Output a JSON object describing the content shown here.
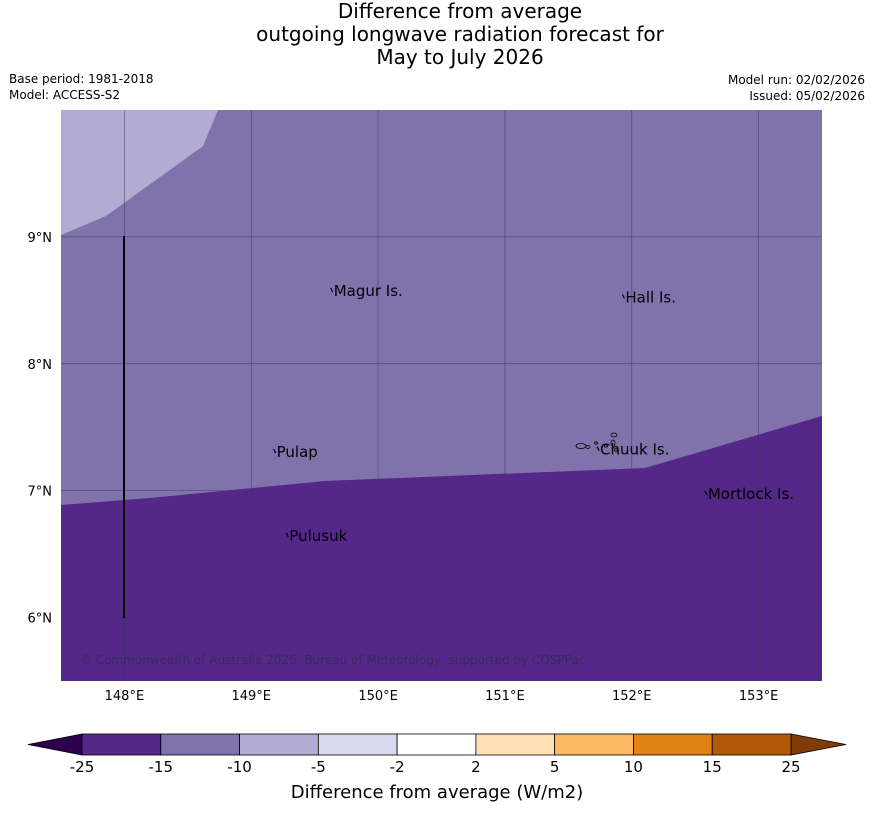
{
  "title": {
    "line1": "Difference from average",
    "line2": "outgoing longwave radiation forecast for",
    "line3": "May to July 2026"
  },
  "meta": {
    "base_period": "Base period: 1981-2018",
    "model": "Model: ACCESS-S2",
    "model_run": "Model run: 02/02/2026",
    "issued": "Issued: 05/02/2026"
  },
  "map": {
    "lon_range": [
      147.5,
      153.5
    ],
    "lat_range": [
      5.5,
      10.0
    ],
    "lon_ticks": [
      "148°E",
      "149°E",
      "150°E",
      "151°E",
      "152°E",
      "153°E"
    ],
    "lat_ticks": [
      "9°N",
      "8°N",
      "7°N",
      "6°N"
    ],
    "places": [
      {
        "name": "Magur Is.",
        "lon": 149.65,
        "lat": 8.55
      },
      {
        "name": "Hall Is.",
        "lon": 151.95,
        "lat": 8.5
      },
      {
        "name": "Pulap",
        "lon": 149.2,
        "lat": 7.28
      },
      {
        "name": "Chuuk Is.",
        "lon": 151.75,
        "lat": 7.3
      },
      {
        "name": "Mortlock Is.",
        "lon": 152.6,
        "lat": 6.95
      },
      {
        "name": "Pulusuk",
        "lon": 149.3,
        "lat": 6.62
      }
    ],
    "copyright": "© Commonwealth of Australia 2026, Bureau of Meteorology, supported by COSPPac",
    "colors": {
      "band_minus_25_to_minus_15": "#542788",
      "band_minus_15_to_minus_10": "#8073ac",
      "band_minus_10_to_minus_5": "#b2abd2"
    }
  },
  "colorbar": {
    "label": "Difference from average (W/m2)",
    "ticks": [
      "-25",
      "-15",
      "-10",
      "-5",
      "-2",
      "2",
      "5",
      "10",
      "15",
      "25"
    ],
    "colors": [
      "#542788",
      "#8073ac",
      "#b2abd2",
      "#d8daeb",
      "#ffffff",
      "#fee0b6",
      "#fdb863",
      "#e08214",
      "#b35806"
    ],
    "under_color": "#2d004b",
    "over_color": "#7f3b08"
  }
}
